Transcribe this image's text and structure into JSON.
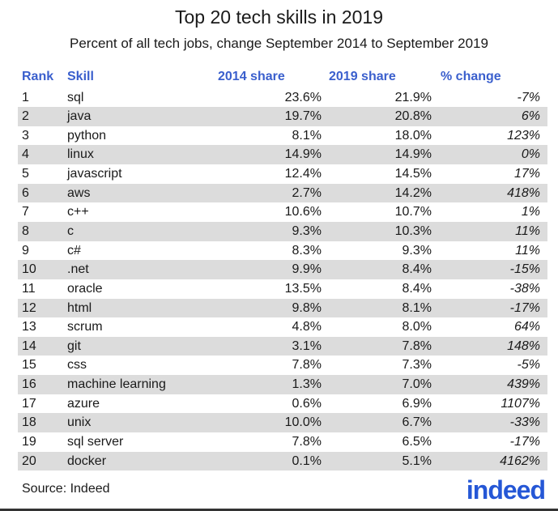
{
  "chart_data": {
    "type": "table",
    "title": "Top 20 tech skills in 2019",
    "subtitle": "Percent of all tech jobs, change September 2014 to September 2019",
    "columns": [
      "Rank",
      "Skill",
      "2014 share",
      "2019 share",
      "% change"
    ],
    "rows": [
      [
        "1",
        "sql",
        "23.6%",
        "21.9%",
        "-7%"
      ],
      [
        "2",
        "java",
        "19.7%",
        "20.8%",
        "6%"
      ],
      [
        "3",
        "python",
        "8.1%",
        "18.0%",
        "123%"
      ],
      [
        "4",
        "linux",
        "14.9%",
        "14.9%",
        "0%"
      ],
      [
        "5",
        "javascript",
        "12.4%",
        "14.5%",
        "17%"
      ],
      [
        "6",
        "aws",
        "2.7%",
        "14.2%",
        "418%"
      ],
      [
        "7",
        "c++",
        "10.6%",
        "10.7%",
        "1%"
      ],
      [
        "8",
        "c",
        "9.3%",
        "10.3%",
        "11%"
      ],
      [
        "9",
        "c#",
        "8.3%",
        "9.3%",
        "11%"
      ],
      [
        "10",
        ".net",
        "9.9%",
        "8.4%",
        "-15%"
      ],
      [
        "11",
        "oracle",
        "13.5%",
        "8.4%",
        "-38%"
      ],
      [
        "12",
        "html",
        "9.8%",
        "8.1%",
        "-17%"
      ],
      [
        "13",
        "scrum",
        "4.8%",
        "8.0%",
        "64%"
      ],
      [
        "14",
        "git",
        "3.1%",
        "7.8%",
        "148%"
      ],
      [
        "15",
        "css",
        "7.8%",
        "7.3%",
        "-5%"
      ],
      [
        "16",
        "machine learning",
        "1.3%",
        "7.0%",
        "439%"
      ],
      [
        "17",
        "azure",
        "0.6%",
        "6.9%",
        "1107%"
      ],
      [
        "18",
        "unix",
        "10.0%",
        "6.7%",
        "-33%"
      ],
      [
        "19",
        "sql server",
        "7.8%",
        "6.5%",
        "-17%"
      ],
      [
        "20",
        "docker",
        "0.1%",
        "5.1%",
        "4162%"
      ]
    ],
    "source": "Source: Indeed",
    "logo": "indeed",
    "colors": {
      "header": "#3a5fcd",
      "stripe": "#dcdcdc",
      "logo": "#2557d6"
    }
  }
}
